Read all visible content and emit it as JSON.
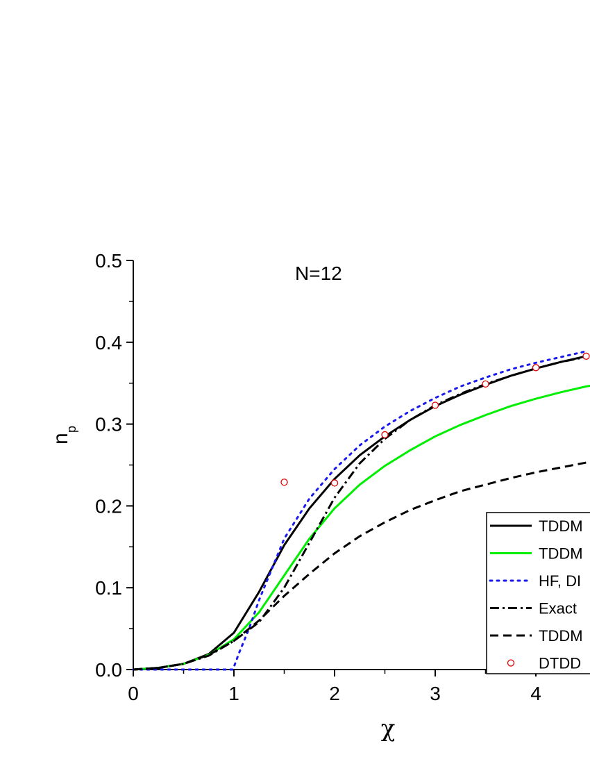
{
  "chart_data": {
    "type": "line",
    "annotation": "N=12",
    "xlabel": "χ",
    "ylabel_main": "n",
    "ylabel_sub": "p",
    "xlim": [
      0,
      4.6
    ],
    "ylim": [
      0,
      0.5
    ],
    "x_ticks": [
      "0",
      "1",
      "2",
      "3",
      "4"
    ],
    "y_ticks": [
      "0.0",
      "0.1",
      "0.2",
      "0.3",
      "0.4",
      "0.5"
    ],
    "legend_position": "bottom-right",
    "series": [
      {
        "name": "TDDM",
        "color": "#000000",
        "style": "solid",
        "x": [
          0,
          0.25,
          0.5,
          0.75,
          1.0,
          1.25,
          1.5,
          1.75,
          2.0,
          2.25,
          2.5,
          2.75,
          3.0,
          3.25,
          3.5,
          3.75,
          4.0,
          4.25,
          4.5
        ],
        "y": [
          0.0,
          0.002,
          0.007,
          0.019,
          0.045,
          0.095,
          0.152,
          0.197,
          0.233,
          0.262,
          0.285,
          0.305,
          0.322,
          0.336,
          0.348,
          0.359,
          0.368,
          0.376,
          0.383
        ]
      },
      {
        "name": "TDDM",
        "color": "#00ee00",
        "style": "solid",
        "x": [
          0,
          0.25,
          0.5,
          0.75,
          1.0,
          1.25,
          1.5,
          1.75,
          2.0,
          2.25,
          2.5,
          2.75,
          3.0,
          3.25,
          3.5,
          3.75,
          4.0,
          4.25,
          4.5,
          4.6
        ],
        "y": [
          0.0,
          0.002,
          0.007,
          0.018,
          0.037,
          0.07,
          0.115,
          0.16,
          0.197,
          0.226,
          0.249,
          0.268,
          0.285,
          0.299,
          0.311,
          0.322,
          0.331,
          0.339,
          0.346,
          0.348
        ]
      },
      {
        "name": "HF, DI",
        "color": "#1a1aee",
        "style": "dotted",
        "x": [
          0,
          0.5,
          0.99,
          1.05,
          1.15,
          1.25,
          1.5,
          1.75,
          2.0,
          2.25,
          2.5,
          2.75,
          3.0,
          3.25,
          3.5,
          3.75,
          4.0,
          4.25,
          4.5
        ],
        "y": [
          0.0,
          0.0,
          0.0,
          0.02,
          0.05,
          0.085,
          0.16,
          0.209,
          0.245,
          0.274,
          0.297,
          0.316,
          0.332,
          0.346,
          0.357,
          0.367,
          0.375,
          0.382,
          0.389
        ]
      },
      {
        "name": "Exact",
        "color": "#000000",
        "style": "dashdot",
        "x": [
          0,
          0.25,
          0.5,
          0.75,
          1.0,
          1.25,
          1.5,
          1.75,
          2.0,
          2.25,
          2.5,
          2.75,
          3.0,
          3.25,
          3.5,
          3.75,
          4.0,
          4.25,
          4.5
        ],
        "y": [
          0.0,
          0.002,
          0.007,
          0.017,
          0.035,
          0.058,
          0.1,
          0.155,
          0.21,
          0.252,
          0.282,
          0.305,
          0.323,
          0.337,
          0.349,
          0.359,
          0.368,
          0.376,
          0.382
        ]
      },
      {
        "name": "TDDM",
        "color": "#000000",
        "style": "dashed",
        "x": [
          0,
          0.25,
          0.5,
          0.75,
          1.0,
          1.25,
          1.5,
          1.75,
          2.0,
          2.25,
          2.5,
          2.75,
          3.0,
          3.25,
          3.5,
          3.75,
          4.0,
          4.25,
          4.5,
          4.6
        ],
        "y": [
          0.0,
          0.002,
          0.007,
          0.018,
          0.035,
          0.06,
          0.09,
          0.117,
          0.142,
          0.163,
          0.18,
          0.195,
          0.207,
          0.218,
          0.226,
          0.234,
          0.241,
          0.247,
          0.253,
          0.255
        ]
      },
      {
        "name": "DTDD",
        "color": "#e00000",
        "style": "markers",
        "x": [
          1.5,
          2.0,
          2.5,
          3.0,
          3.5,
          4.0,
          4.5
        ],
        "y": [
          0.229,
          0.228,
          0.287,
          0.323,
          0.349,
          0.369,
          0.383
        ]
      }
    ]
  }
}
